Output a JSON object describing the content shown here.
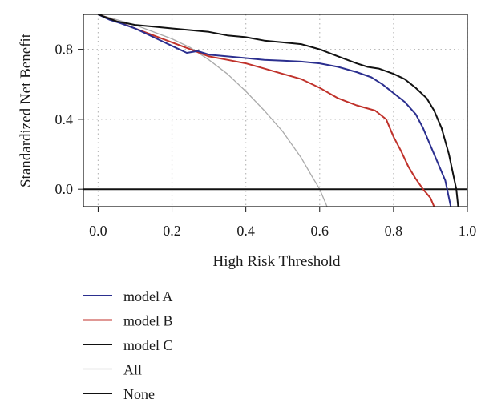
{
  "chart_data": {
    "type": "line",
    "title": "",
    "xlabel": "High Risk Threshold",
    "ylabel": "Standardized Net Benefit",
    "xlim": [
      -0.04,
      1.0
    ],
    "ylim": [
      -0.1,
      1.0
    ],
    "xticks": [
      0.0,
      0.2,
      0.4,
      0.6,
      0.8,
      1.0
    ],
    "xtick_labels": [
      "0.0",
      "0.2",
      "0.4",
      "0.6",
      "0.8",
      "1.0"
    ],
    "yticks": [
      0.0,
      0.4,
      0.8
    ],
    "ytick_labels": [
      "0.0",
      "0.4",
      "0.8"
    ],
    "grid": "dotted",
    "legend_position": "bottom-left",
    "series": [
      {
        "name": "model A",
        "color": "#2b2f8f",
        "points": [
          [
            0.0,
            1.0
          ],
          [
            0.03,
            0.97
          ],
          [
            0.06,
            0.95
          ],
          [
            0.1,
            0.92
          ],
          [
            0.15,
            0.87
          ],
          [
            0.2,
            0.82
          ],
          [
            0.24,
            0.78
          ],
          [
            0.27,
            0.79
          ],
          [
            0.3,
            0.77
          ],
          [
            0.35,
            0.76
          ],
          [
            0.4,
            0.75
          ],
          [
            0.45,
            0.74
          ],
          [
            0.5,
            0.735
          ],
          [
            0.55,
            0.73
          ],
          [
            0.6,
            0.72
          ],
          [
            0.65,
            0.7
          ],
          [
            0.7,
            0.67
          ],
          [
            0.74,
            0.64
          ],
          [
            0.77,
            0.6
          ],
          [
            0.8,
            0.55
          ],
          [
            0.83,
            0.5
          ],
          [
            0.86,
            0.43
          ],
          [
            0.88,
            0.35
          ],
          [
            0.9,
            0.25
          ],
          [
            0.92,
            0.15
          ],
          [
            0.94,
            0.05
          ],
          [
            0.95,
            -0.05
          ],
          [
            0.955,
            -0.1
          ]
        ]
      },
      {
        "name": "model B",
        "color": "#c0322b",
        "points": [
          [
            0.0,
            1.0
          ],
          [
            0.05,
            0.96
          ],
          [
            0.1,
            0.92
          ],
          [
            0.15,
            0.88
          ],
          [
            0.2,
            0.84
          ],
          [
            0.25,
            0.8
          ],
          [
            0.3,
            0.76
          ],
          [
            0.35,
            0.74
          ],
          [
            0.4,
            0.72
          ],
          [
            0.45,
            0.69
          ],
          [
            0.5,
            0.66
          ],
          [
            0.55,
            0.63
          ],
          [
            0.6,
            0.58
          ],
          [
            0.65,
            0.52
          ],
          [
            0.7,
            0.48
          ],
          [
            0.75,
            0.45
          ],
          [
            0.78,
            0.4
          ],
          [
            0.8,
            0.3
          ],
          [
            0.82,
            0.22
          ],
          [
            0.84,
            0.13
          ],
          [
            0.86,
            0.06
          ],
          [
            0.88,
            0.0
          ],
          [
            0.9,
            -0.05
          ],
          [
            0.91,
            -0.1
          ]
        ]
      },
      {
        "name": "model C",
        "color": "#111111",
        "points": [
          [
            0.0,
            1.0
          ],
          [
            0.05,
            0.96
          ],
          [
            0.1,
            0.94
          ],
          [
            0.15,
            0.93
          ],
          [
            0.2,
            0.92
          ],
          [
            0.25,
            0.91
          ],
          [
            0.3,
            0.9
          ],
          [
            0.35,
            0.88
          ],
          [
            0.4,
            0.87
          ],
          [
            0.45,
            0.85
          ],
          [
            0.5,
            0.84
          ],
          [
            0.55,
            0.83
          ],
          [
            0.6,
            0.8
          ],
          [
            0.65,
            0.76
          ],
          [
            0.7,
            0.72
          ],
          [
            0.73,
            0.7
          ],
          [
            0.76,
            0.69
          ],
          [
            0.8,
            0.66
          ],
          [
            0.83,
            0.63
          ],
          [
            0.86,
            0.58
          ],
          [
            0.89,
            0.52
          ],
          [
            0.91,
            0.45
          ],
          [
            0.93,
            0.35
          ],
          [
            0.95,
            0.2
          ],
          [
            0.96,
            0.1
          ],
          [
            0.97,
            0.0
          ],
          [
            0.975,
            -0.1
          ]
        ]
      },
      {
        "name": "All",
        "color": "#aaaaaa",
        "points": [
          [
            0.0,
            1.0
          ],
          [
            0.1,
            0.94
          ],
          [
            0.2,
            0.86
          ],
          [
            0.25,
            0.81
          ],
          [
            0.3,
            0.74
          ],
          [
            0.35,
            0.66
          ],
          [
            0.4,
            0.56
          ],
          [
            0.45,
            0.45
          ],
          [
            0.5,
            0.33
          ],
          [
            0.55,
            0.18
          ],
          [
            0.58,
            0.07
          ],
          [
            0.6,
            0.0
          ],
          [
            0.61,
            -0.05
          ],
          [
            0.62,
            -0.1
          ]
        ]
      },
      {
        "name": "None",
        "color": "#111111",
        "points": [
          [
            -0.04,
            0.0
          ],
          [
            1.0,
            0.0
          ]
        ]
      }
    ]
  }
}
